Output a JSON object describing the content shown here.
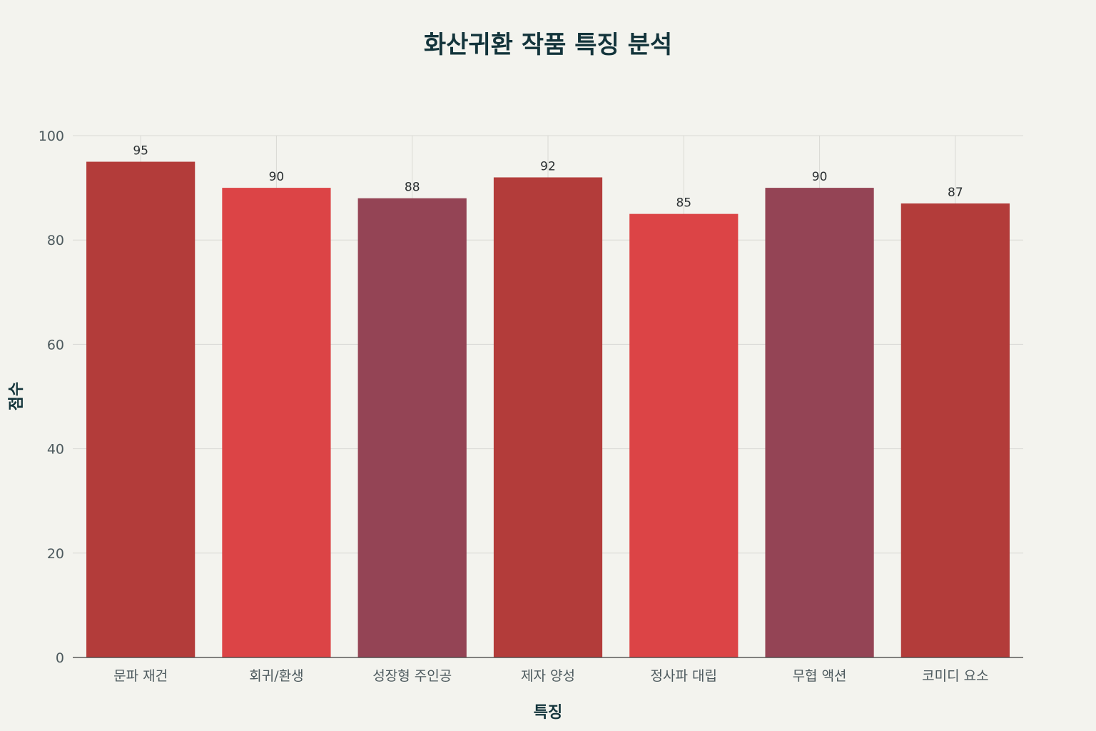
{
  "chart_data": {
    "type": "bar",
    "title": "화산귀환 작품 특징 분석",
    "xlabel": "특징",
    "ylabel": "점수",
    "categories": [
      "문파 재건",
      "회귀/환생",
      "성장형 주인공",
      "제자 양성",
      "정사파 대립",
      "무협 액션",
      "코미디 요소"
    ],
    "values": [
      95,
      90,
      88,
      92,
      85,
      90,
      87
    ],
    "colors": [
      "#b33c3a",
      "#dc4446",
      "#944455",
      "#b33c3a",
      "#dc4446",
      "#944455",
      "#b33c3a"
    ],
    "ylim": [
      0,
      100
    ],
    "yticks": [
      0,
      20,
      40,
      60,
      80,
      100
    ],
    "grid": true,
    "legend": "none"
  }
}
